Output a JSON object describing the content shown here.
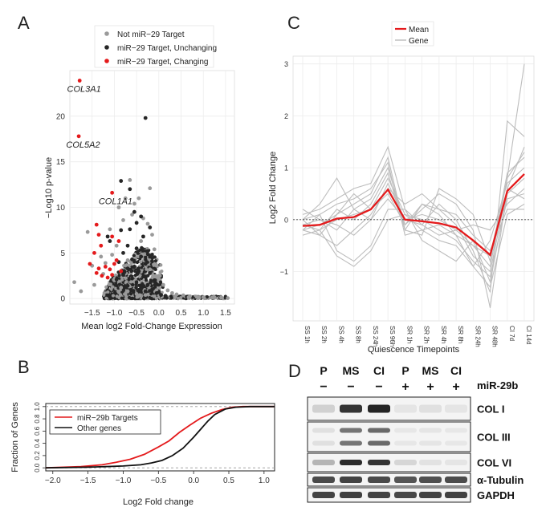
{
  "panels": {
    "a": "A",
    "b": "B",
    "c": "C",
    "d": "D"
  },
  "chart_data": [
    {
      "type": "scatter",
      "panel": "A",
      "xlabel": "Mean log2 Fold-Change Expression",
      "ylabel": "−Log10 p-value",
      "xlim": [
        -2.0,
        1.7
      ],
      "ylim": [
        -0.6,
        25.0
      ],
      "xticks": [
        -1.5,
        -1.0,
        -0.5,
        0.0,
        0.5,
        1.0,
        1.5
      ],
      "xtick_labels": [
        "−1.5",
        "−1.0",
        "−0.5",
        "0.0",
        "0.5",
        "1.0",
        "1.5"
      ],
      "yticks": [
        0,
        5,
        10,
        15,
        20
      ],
      "ytick_labels": [
        "0",
        "5",
        "10",
        "15",
        "20"
      ],
      "legend": [
        {
          "label": "Not miR−29 Target",
          "color": "#9a9a9a"
        },
        {
          "label": "miR−29 Target, Unchanging",
          "color": "#262626"
        },
        {
          "label": "miR−29 Target, Changing",
          "color": "#e41a1c"
        }
      ],
      "annotations": [
        {
          "text": "COL3A1",
          "x": -1.81,
          "y": 23.9
        },
        {
          "text": "COL5A2",
          "x": -1.83,
          "y": 17.8
        },
        {
          "text": "COL1A1",
          "x": -1.1,
          "y": 11.6
        }
      ],
      "series": [
        {
          "name": "miR−29 Target, Changing",
          "color": "#e41a1c",
          "points": [
            [
              -1.78,
              23.9
            ],
            [
              -1.8,
              17.8
            ],
            [
              -1.05,
              11.6
            ],
            [
              -1.4,
              8.1
            ],
            [
              -1.35,
              7.0
            ],
            [
              -1.05,
              6.8
            ],
            [
              -0.9,
              6.3
            ],
            [
              -1.3,
              5.8
            ],
            [
              -1.45,
              5.0
            ],
            [
              -1.55,
              3.8
            ],
            [
              -1.35,
              3.3
            ],
            [
              -1.2,
              3.5
            ],
            [
              -1.1,
              3.2
            ],
            [
              -1.0,
              3.8
            ],
            [
              -0.85,
              3.0
            ],
            [
              -1.28,
              2.5
            ],
            [
              -1.15,
              2.3
            ],
            [
              -1.05,
              2.6
            ],
            [
              -1.4,
              2.8
            ],
            [
              -0.95,
              4.2
            ]
          ]
        },
        {
          "name": "miR−29 Target, Unchanging",
          "color": "#262626",
          "points": [
            [
              -0.3,
              19.8
            ],
            [
              -0.85,
              12.9
            ],
            [
              -0.65,
              12.0
            ],
            [
              -0.55,
              9.5
            ],
            [
              -0.4,
              9.0
            ],
            [
              -0.5,
              8.3
            ],
            [
              -0.65,
              7.6
            ],
            [
              -0.2,
              7.8
            ],
            [
              -0.85,
              7.5
            ],
            [
              -0.35,
              6.8
            ],
            [
              -1.1,
              6.3
            ],
            [
              -0.7,
              5.8
            ],
            [
              -0.5,
              5.5
            ],
            [
              -0.25,
              5.2
            ],
            [
              -0.8,
              5.0
            ],
            [
              -0.4,
              4.6
            ],
            [
              -0.6,
              4.3
            ],
            [
              -0.15,
              4.1
            ],
            [
              -0.9,
              4.0
            ],
            [
              -0.3,
              3.8
            ],
            [
              -0.55,
              3.5
            ],
            [
              -0.7,
              3.3
            ],
            [
              -0.45,
              3.0
            ],
            [
              -0.2,
              2.8
            ],
            [
              -0.8,
              2.6
            ],
            [
              -0.35,
              2.4
            ],
            [
              -0.6,
              2.2
            ],
            [
              -0.1,
              2.0
            ],
            [
              -0.5,
              1.8
            ],
            [
              -0.25,
              1.5
            ],
            [
              -0.7,
              1.4
            ],
            [
              -0.4,
              1.2
            ],
            [
              -0.15,
              1.0
            ],
            [
              -0.3,
              0.8
            ],
            [
              -0.05,
              0.6
            ],
            [
              0.05,
              0.4
            ],
            [
              0.15,
              0.3
            ],
            [
              -0.45,
              0.9
            ],
            [
              -0.95,
              2.1
            ],
            [
              -1.15,
              6.8
            ]
          ]
        },
        {
          "name": "Not miR−29 Target",
          "color": "#9a9a9a",
          "points": [
            [
              -1.6,
              7.3
            ],
            [
              -1.9,
              1.8
            ],
            [
              -1.75,
              0.8
            ],
            [
              -1.5,
              3.6
            ],
            [
              -1.45,
              1.5
            ],
            [
              -1.3,
              4.6
            ],
            [
              -1.2,
              3.9
            ],
            [
              -1.1,
              7.6
            ],
            [
              -1.05,
              4.8
            ],
            [
              -0.9,
              10.0
            ],
            [
              -0.8,
              8.6
            ],
            [
              -0.75,
              11.0
            ],
            [
              -0.6,
              9.2
            ],
            [
              -0.55,
              10.4
            ],
            [
              -0.45,
              11.0
            ],
            [
              -0.35,
              8.8
            ],
            [
              -0.25,
              8.2
            ],
            [
              -0.15,
              7.0
            ],
            [
              -0.1,
              5.4
            ],
            [
              -0.05,
              3.6
            ],
            [
              0.0,
              2.4
            ],
            [
              0.1,
              1.5
            ],
            [
              0.2,
              0.9
            ],
            [
              0.3,
              0.6
            ],
            [
              0.4,
              0.45
            ],
            [
              0.55,
              0.35
            ],
            [
              0.7,
              0.25
            ],
            [
              0.85,
              0.2
            ],
            [
              1.0,
              0.15
            ],
            [
              1.2,
              0.12
            ],
            [
              1.4,
              0.1
            ],
            [
              1.55,
              0.05
            ],
            [
              -0.65,
              13.0
            ],
            [
              -0.2,
              12.1
            ],
            [
              -1.0,
              2.0
            ],
            [
              -0.85,
              1.2
            ],
            [
              -0.7,
              0.8
            ],
            [
              -0.5,
              0.5
            ],
            [
              -0.3,
              0.4
            ],
            [
              -0.95,
              5.8
            ],
            [
              -0.4,
              6.3
            ],
            [
              -0.7,
              4.2
            ],
            [
              -1.25,
              2.7
            ],
            [
              -0.2,
              3.2
            ]
          ]
        }
      ]
    },
    {
      "type": "line",
      "panel": "B",
      "xlabel": "Log2 Fold change",
      "ylabel": "Fraction of Genes",
      "xlim": [
        -2.1,
        1.15
      ],
      "ylim": [
        -0.05,
        1.05
      ],
      "xticks": [
        -2.0,
        -1.5,
        -1.0,
        -0.5,
        0.0,
        0.5,
        1.0
      ],
      "xtick_labels": [
        "−2.0",
        "−1.5",
        "−1.0",
        "−0.5",
        "0.0",
        "0.5",
        "1.0"
      ],
      "yticks": [
        0.0,
        0.2,
        0.4,
        0.6,
        0.8,
        1.0
      ],
      "ytick_labels": [
        "0.0",
        "0.2",
        "0.4",
        "0.6",
        "0.8",
        "1.0"
      ],
      "series": [
        {
          "name": "miR−29b Targets",
          "color": "#e41a1c",
          "x": [
            -2.1,
            -1.6,
            -1.3,
            -1.1,
            -0.9,
            -0.7,
            -0.5,
            -0.35,
            -0.2,
            -0.05,
            0.1,
            0.25,
            0.4,
            0.55,
            0.7,
            0.9,
            1.15
          ],
          "y": [
            0.0,
            0.02,
            0.05,
            0.09,
            0.14,
            0.22,
            0.34,
            0.44,
            0.58,
            0.7,
            0.81,
            0.89,
            0.95,
            0.99,
            1.0,
            1.0,
            1.0
          ]
        },
        {
          "name": "Other genes",
          "color": "#111111",
          "x": [
            -2.1,
            -1.5,
            -1.0,
            -0.75,
            -0.6,
            -0.45,
            -0.3,
            -0.15,
            0.0,
            0.1,
            0.2,
            0.3,
            0.45,
            0.6,
            0.8,
            1.15
          ],
          "y": [
            0.0,
            0.01,
            0.03,
            0.05,
            0.08,
            0.12,
            0.2,
            0.32,
            0.5,
            0.63,
            0.76,
            0.87,
            0.96,
            0.99,
            1.0,
            1.0
          ]
        }
      ]
    },
    {
      "type": "line",
      "panel": "C",
      "xlabel": "Quiescence Timepoints",
      "ylabel": "Log2 Fold Change",
      "ylim": [
        -1.95,
        3.15
      ],
      "yticks": [
        -1,
        0,
        1,
        2,
        3
      ],
      "ytick_labels": [
        "−1",
        "0",
        "1",
        "2",
        "3"
      ],
      "categories": [
        "SS 1h",
        "SS 2h",
        "SS 4h",
        "SS 8h",
        "SS 24h",
        "SS 96h",
        "SR 1h",
        "SR 2h",
        "SR 4h",
        "SR 8h",
        "SR 24h",
        "SR 48h",
        "CI 7d",
        "CI 14d"
      ],
      "legend": [
        {
          "label": "Mean",
          "color": "#e41a1c"
        },
        {
          "label": "Gene",
          "color": "#bbbbbb"
        }
      ],
      "mean": [
        -0.12,
        -0.1,
        0.02,
        0.05,
        0.2,
        0.58,
        0.0,
        -0.03,
        -0.07,
        -0.15,
        -0.4,
        -0.68,
        0.55,
        0.88
      ],
      "genes": [
        [
          -0.2,
          -0.1,
          0.1,
          0.3,
          0.5,
          1.2,
          -0.2,
          0.3,
          0.1,
          -0.3,
          -0.5,
          -0.9,
          0.8,
          3.0
        ],
        [
          0.1,
          0.2,
          0.4,
          0.6,
          0.7,
          1.4,
          0.2,
          -0.1,
          0.3,
          0.0,
          -0.6,
          -1.4,
          1.9,
          1.6
        ],
        [
          -0.1,
          0.0,
          -0.2,
          0.2,
          0.4,
          1.0,
          -0.1,
          0.2,
          0.5,
          0.3,
          -0.2,
          -1.7,
          0.6,
          1.4
        ],
        [
          -0.3,
          -0.2,
          0.0,
          0.1,
          0.2,
          0.8,
          0.1,
          0.0,
          -0.2,
          -0.4,
          -0.8,
          -1.1,
          0.4,
          0.5
        ],
        [
          0.0,
          -0.3,
          -0.5,
          -0.2,
          0.1,
          0.6,
          0.3,
          0.5,
          0.2,
          0.1,
          -0.3,
          -0.6,
          0.2,
          0.2
        ],
        [
          -0.2,
          0.1,
          0.3,
          0.4,
          0.6,
          1.1,
          -0.3,
          -0.2,
          -0.4,
          -0.5,
          -0.9,
          -0.4,
          0.7,
          1.0
        ],
        [
          0.2,
          0.0,
          -0.1,
          -0.3,
          0.0,
          0.4,
          0.0,
          0.1,
          0.0,
          -0.2,
          -0.1,
          -0.2,
          0.3,
          0.6
        ],
        [
          -0.1,
          -0.2,
          0.2,
          0.0,
          0.3,
          0.9,
          -0.2,
          -0.3,
          0.6,
          0.4,
          0.1,
          -0.8,
          0.9,
          1.2
        ],
        [
          0.0,
          0.1,
          -0.6,
          -0.8,
          -0.5,
          0.2,
          0.2,
          -0.4,
          -0.6,
          -0.8,
          -0.4,
          -1.2,
          0.5,
          0.8
        ],
        [
          -0.2,
          -0.3,
          0.1,
          0.5,
          0.2,
          0.5,
          -0.1,
          0.3,
          0.2,
          -0.1,
          -0.7,
          -1.0,
          0.6,
          0.4
        ],
        [
          -0.1,
          -0.2,
          -0.7,
          -0.9,
          -0.6,
          0.0,
          0.1,
          -0.2,
          -0.1,
          -0.3,
          -0.9,
          -1.3,
          0.1,
          0.3
        ],
        [
          0.0,
          0.3,
          0.8,
          0.2,
          0.0,
          0.7,
          0.0,
          -0.1,
          -0.3,
          -0.2,
          -0.5,
          -0.7,
          0.8,
          1.3
        ]
      ]
    }
  ],
  "blot": {
    "lane_labels": [
      "P",
      "MS",
      "CI",
      "P",
      "MS",
      "CI"
    ],
    "treatment_signs": [
      "−",
      "−",
      "−",
      "+",
      "+",
      "+"
    ],
    "treatment_label": "miR-29b",
    "rows": [
      {
        "label": "COL I",
        "intensities": [
          0.12,
          0.85,
          0.92,
          0.03,
          0.05,
          0.03
        ]
      },
      {
        "label": "COL III",
        "intensities": [
          0.05,
          0.55,
          0.6,
          0.02,
          0.03,
          0.02
        ]
      },
      {
        "label": "COL VI",
        "intensities": [
          0.25,
          0.9,
          0.85,
          0.1,
          0.04,
          0.03
        ]
      },
      {
        "label": "α-Tubulin",
        "intensities": [
          0.75,
          0.78,
          0.75,
          0.7,
          0.72,
          0.74
        ]
      },
      {
        "label": "GAPDH",
        "intensities": [
          0.78,
          0.8,
          0.78,
          0.76,
          0.78,
          0.79
        ]
      }
    ]
  }
}
